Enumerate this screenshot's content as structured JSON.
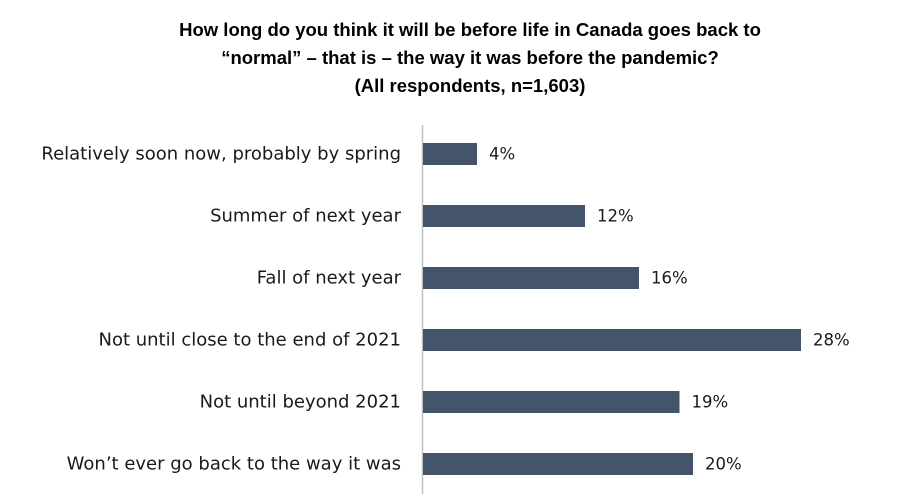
{
  "chart_data": {
    "type": "bar",
    "orientation": "horizontal",
    "title_lines": [
      "How long do you think it will be before life in Canada goes back to",
      "“normal” – that is – the way it was before the pandemic?",
      "(All respondents, n=1,603)"
    ],
    "categories": [
      "Relatively soon now, probably by spring",
      "Summer of next year",
      "Fall of next year",
      "Not until close to the end of 2021",
      "Not until beyond 2021",
      "Won’t ever go back to the way it was"
    ],
    "values": [
      4,
      12,
      16,
      28,
      19,
      20
    ],
    "value_labels": [
      "4%",
      "12%",
      "16%",
      "28%",
      "19%",
      "20%"
    ],
    "unit": "%",
    "xlim": [
      0,
      28
    ],
    "grid": false,
    "legend": "none",
    "colors": {
      "bar": "#44546a",
      "axis": "#bfbfbf",
      "text": "#1a1a1a"
    }
  }
}
